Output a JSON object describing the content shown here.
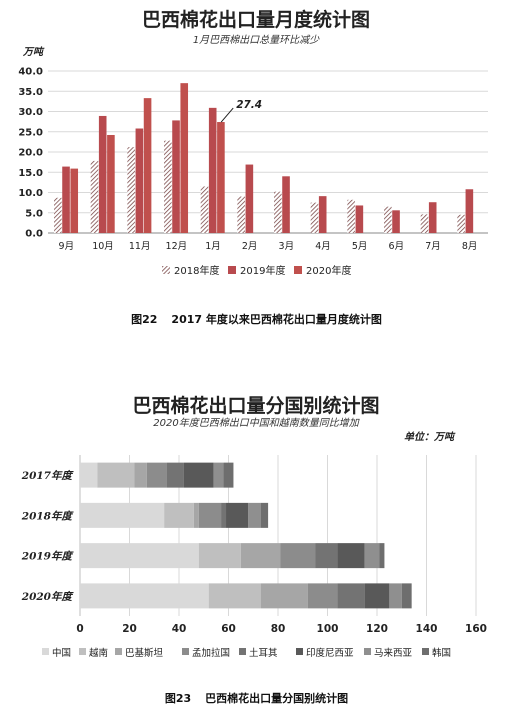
{
  "chart_data": [
    {
      "type": "bar",
      "title": "巴西棉花出口量月度统计图",
      "subtitle": "1月巴西棉出口总量环比减少",
      "ylabel": "万吨",
      "ylim": [
        0,
        40
      ],
      "yticks": [
        "0.0",
        "5.0",
        "10.0",
        "15.0",
        "20.0",
        "25.0",
        "30.0",
        "35.0",
        "40.0"
      ],
      "categories": [
        "9月",
        "10月",
        "11月",
        "12月",
        "1月",
        "2月",
        "3月",
        "4月",
        "5月",
        "6月",
        "7月",
        "8月"
      ],
      "series": [
        {
          "name": "2018年度",
          "values": [
            8.7,
            17.8,
            21.2,
            22.8,
            11.5,
            9.0,
            10.2,
            7.5,
            8.2,
            6.5,
            4.6,
            4.5
          ]
        },
        {
          "name": "2019年度",
          "values": [
            16.4,
            28.9,
            25.8,
            27.8,
            30.9,
            16.9,
            14.0,
            9.1,
            6.8,
            5.6,
            7.6,
            10.8
          ]
        },
        {
          "name": "2020年度",
          "values": [
            15.9,
            24.2,
            33.3,
            37.0,
            27.4,
            null,
            null,
            null,
            null,
            null,
            null,
            null
          ]
        }
      ],
      "annotation": "27.4",
      "grid": true,
      "legend": "bottom"
    },
    {
      "type": "bar",
      "orientation": "horizontal",
      "stacked": true,
      "title": "巴西棉花出口量分国别统计图",
      "subtitle": "2020年度巴西棉出口中国和越南数量同比增加",
      "unit": "单位：万吨",
      "xlim": [
        0,
        160
      ],
      "xticks": [
        "0",
        "20",
        "40",
        "60",
        "80",
        "100",
        "120",
        "140",
        "160"
      ],
      "categories": [
        "2017年度",
        "2018年度",
        "2019年度",
        "2020年度"
      ],
      "series": [
        {
          "name": "中国",
          "values": [
            7,
            34,
            48,
            52
          ]
        },
        {
          "name": "越南",
          "values": [
            15,
            12,
            17,
            21
          ]
        },
        {
          "name": "巴基斯坦",
          "values": [
            5,
            2,
            16,
            19
          ]
        },
        {
          "name": "孟加拉国",
          "values": [
            8,
            9,
            14,
            12
          ]
        },
        {
          "name": "土耳其",
          "values": [
            7,
            2,
            9,
            11
          ]
        },
        {
          "name": "印度尼西亚",
          "values": [
            12,
            9,
            11,
            10
          ]
        },
        {
          "name": "马来西亚",
          "values": [
            4,
            5,
            6,
            5
          ]
        },
        {
          "name": "韩国",
          "values": [
            4,
            3,
            2,
            4
          ]
        }
      ],
      "grid": true,
      "legend": "bottom"
    }
  ],
  "colors": {
    "s2018": "#7a4a4a",
    "s2019": "#b84a4e",
    "s2020": "#c0504d",
    "stack": [
      "#d9d9d9",
      "#bfbfbf",
      "#a6a6a6",
      "#8c8c8c",
      "#737373",
      "#595959",
      "#8f8f8f",
      "#6e6e6e"
    ]
  },
  "captions": {
    "fig22_num": "图22",
    "fig22_text": "2017 年度以来巴西棉花出口量月度统计图",
    "fig23_num": "图23",
    "fig23_text": "巴西棉花出口量分国别统计图"
  }
}
